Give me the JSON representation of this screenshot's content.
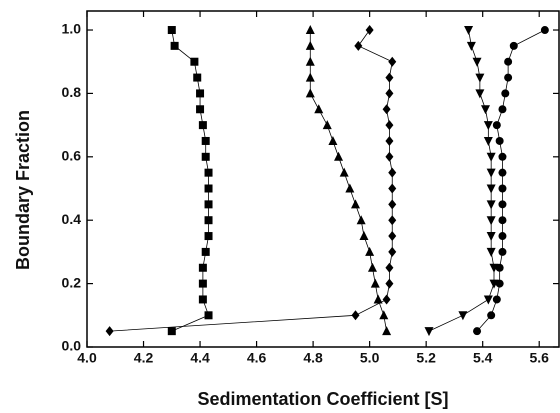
{
  "chart_data": {
    "type": "scatter",
    "x_label": "Sedimentation Coefficient [S]",
    "y_label": "Boundary Fraction",
    "xlim": [
      4.0,
      5.67
    ],
    "ylim": [
      0,
      1.06
    ],
    "xticks": [
      {
        "value": 4,
        "label": "4.0"
      },
      4.2,
      4.4,
      4.6,
      4.8,
      {
        "value": 5,
        "label": "5.0"
      },
      5.2,
      5.4,
      5.6
    ],
    "yticks": [
      {
        "value": 0,
        "label": "0.0"
      },
      0.2,
      0.4,
      0.6,
      0.8,
      {
        "value": 1,
        "label": "1.0"
      }
    ],
    "connect": true,
    "series": [
      {
        "marker": "square",
        "color": "#000000",
        "x": [
          4.3,
          4.31,
          4.38,
          4.39,
          4.4,
          4.4,
          4.41,
          4.42,
          4.42,
          4.43,
          4.43,
          4.43,
          4.43,
          4.43,
          4.42,
          4.41,
          4.41,
          4.41,
          4.43,
          4.3
        ],
        "y": [
          1.0,
          0.95,
          0.9,
          0.85,
          0.8,
          0.75,
          0.7,
          0.65,
          0.6,
          0.55,
          0.5,
          0.45,
          0.4,
          0.35,
          0.3,
          0.25,
          0.2,
          0.15,
          0.1,
          0.05
        ]
      },
      {
        "marker": "triangle-up",
        "color": "#000000",
        "x": [
          4.79,
          4.79,
          4.79,
          4.79,
          4.79,
          4.82,
          4.85,
          4.87,
          4.89,
          4.91,
          4.93,
          4.95,
          4.97,
          4.98,
          5.0,
          5.01,
          5.02,
          5.03,
          5.05,
          5.06
        ],
        "y": [
          1.0,
          0.95,
          0.9,
          0.85,
          0.8,
          0.75,
          0.7,
          0.65,
          0.6,
          0.55,
          0.5,
          0.45,
          0.4,
          0.35,
          0.3,
          0.25,
          0.2,
          0.15,
          0.1,
          0.05
        ]
      },
      {
        "marker": "diamond",
        "color": "#000000",
        "x": [
          5.0,
          4.96,
          5.08,
          5.07,
          5.07,
          5.06,
          5.07,
          5.07,
          5.07,
          5.08,
          5.08,
          5.08,
          5.08,
          5.08,
          5.08,
          5.07,
          5.07,
          5.06,
          4.95,
          4.08
        ],
        "y": [
          1.0,
          0.95,
          0.9,
          0.85,
          0.8,
          0.75,
          0.7,
          0.65,
          0.6,
          0.55,
          0.5,
          0.45,
          0.4,
          0.35,
          0.3,
          0.25,
          0.2,
          0.15,
          0.1,
          0.05
        ]
      },
      {
        "marker": "triangle-down",
        "color": "#000000",
        "x": [
          5.35,
          5.36,
          5.38,
          5.39,
          5.39,
          5.41,
          5.42,
          5.42,
          5.43,
          5.43,
          5.43,
          5.43,
          5.43,
          5.43,
          5.43,
          5.44,
          5.44,
          5.42,
          5.33,
          5.21
        ],
        "y": [
          1.0,
          0.95,
          0.9,
          0.85,
          0.8,
          0.75,
          0.7,
          0.65,
          0.6,
          0.55,
          0.5,
          0.45,
          0.4,
          0.35,
          0.3,
          0.25,
          0.2,
          0.15,
          0.1,
          0.05
        ]
      },
      {
        "marker": "circle",
        "color": "#000000",
        "x": [
          5.62,
          5.51,
          5.49,
          5.49,
          5.48,
          5.47,
          5.45,
          5.46,
          5.47,
          5.47,
          5.47,
          5.47,
          5.47,
          5.47,
          5.47,
          5.46,
          5.46,
          5.45,
          5.43,
          5.38
        ],
        "y": [
          1.0,
          0.95,
          0.9,
          0.85,
          0.8,
          0.75,
          0.7,
          0.65,
          0.6,
          0.55,
          0.5,
          0.45,
          0.4,
          0.35,
          0.3,
          0.25,
          0.2,
          0.15,
          0.1,
          0.05
        ]
      }
    ]
  }
}
